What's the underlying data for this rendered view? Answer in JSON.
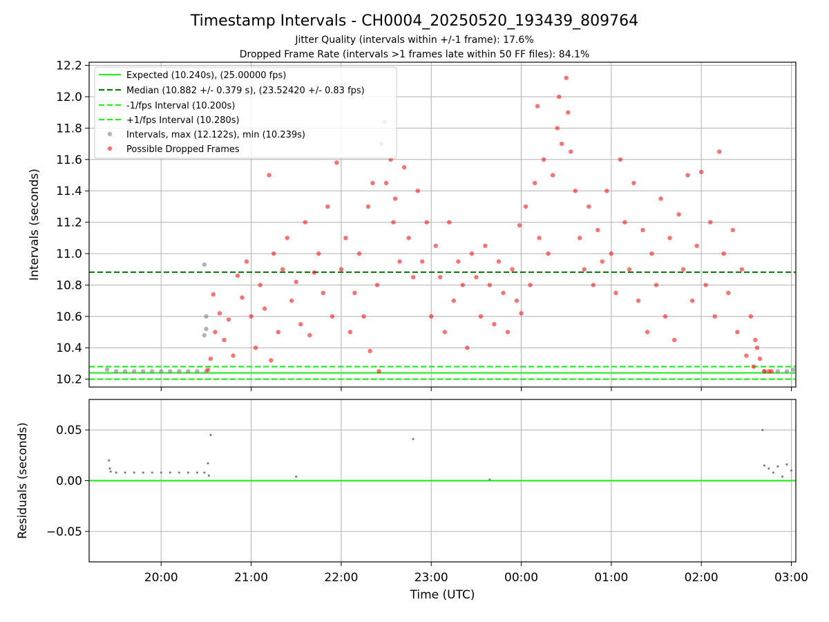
{
  "header": {
    "title": "Timestamp Intervals - CH0004_20250520_193439_809764",
    "subtitle1": "Jitter Quality (intervals within +/-1 frame): 17.6%",
    "subtitle2": "Dropped Frame Rate (intervals >1 frames late within 50 FF files): 84.1%"
  },
  "colors": {
    "expected": "#22ee22",
    "median": "#007f00",
    "bounds": "#22ee22",
    "intervals": "#808080",
    "dropped": "#ff0000"
  },
  "chart_data": [
    {
      "type": "scatter",
      "title": "",
      "xlabel": "",
      "ylabel": "Intervals (seconds)",
      "x_unit": "hours since 00:00 UTC (negative = previous day)",
      "xlim": [
        -4.8,
        3.05
      ],
      "ylim": [
        10.15,
        12.22
      ],
      "x_ticks": [
        -4,
        -3,
        -2,
        -1,
        0,
        1,
        2,
        3
      ],
      "x_tick_labels": [
        "20:00",
        "21:00",
        "22:00",
        "23:00",
        "00:00",
        "01:00",
        "02:00",
        "03:00"
      ],
      "y_ticks": [
        10.2,
        10.4,
        10.6,
        10.8,
        11.0,
        11.2,
        11.4,
        11.6,
        11.8,
        12.0,
        12.2
      ],
      "y_tick_labels": [
        "10.2",
        "10.4",
        "10.6",
        "10.8",
        "11.0",
        "11.2",
        "11.4",
        "11.6",
        "11.8",
        "12.0",
        "12.2"
      ],
      "grid": true,
      "legend_position": "top-left",
      "reference_lines": [
        {
          "name": "Expected (10.240s), (25.00000 fps)",
          "y": 10.24,
          "style": "solid"
        },
        {
          "name": "Median (10.882 +/- 0.379 s), (23.52420 +/- 0.83 fps)",
          "y": 10.882,
          "style": "dashed"
        },
        {
          "name": "-1/fps Interval (10.200s)",
          "y": 10.2,
          "style": "dashed"
        },
        {
          "name": "+1/fps Interval (10.280s)",
          "y": 10.28,
          "style": "dashed"
        }
      ],
      "series": [
        {
          "name": "Intervals, max (12.122s), min (10.239s)",
          "points": [
            [
              -4.6,
              10.26
            ],
            [
              -4.5,
              10.25
            ],
            [
              -4.4,
              10.25
            ],
            [
              -4.3,
              10.25
            ],
            [
              -4.2,
              10.25
            ],
            [
              -4.1,
              10.25
            ],
            [
              -4.0,
              10.25
            ],
            [
              -3.9,
              10.25
            ],
            [
              -3.8,
              10.25
            ],
            [
              -3.7,
              10.25
            ],
            [
              -3.6,
              10.25
            ],
            [
              -3.5,
              10.25
            ],
            [
              -3.52,
              10.48
            ],
            [
              -3.5,
              10.52
            ],
            [
              -3.5,
              10.6
            ],
            [
              -3.52,
              10.93
            ],
            [
              2.7,
              10.25
            ],
            [
              2.85,
              10.25
            ],
            [
              2.95,
              10.25
            ],
            [
              3.02,
              10.26
            ]
          ]
        },
        {
          "name": "Possible Dropped Frames",
          "points": [
            [
              -3.48,
              10.26
            ],
            [
              -3.45,
              10.33
            ],
            [
              -3.42,
              10.74
            ],
            [
              -3.4,
              10.5
            ],
            [
              -3.35,
              10.62
            ],
            [
              -3.3,
              10.45
            ],
            [
              -3.25,
              10.58
            ],
            [
              -3.2,
              10.35
            ],
            [
              -3.15,
              10.86
            ],
            [
              -3.1,
              10.72
            ],
            [
              -3.05,
              10.95
            ],
            [
              -3.0,
              10.6
            ],
            [
              -2.95,
              10.4
            ],
            [
              -2.9,
              10.8
            ],
            [
              -2.85,
              10.65
            ],
            [
              -2.8,
              11.5
            ],
            [
              -2.78,
              10.32
            ],
            [
              -2.75,
              11.0
            ],
            [
              -2.7,
              10.5
            ],
            [
              -2.65,
              10.9
            ],
            [
              -2.6,
              11.1
            ],
            [
              -2.55,
              10.7
            ],
            [
              -2.5,
              10.82
            ],
            [
              -2.45,
              10.55
            ],
            [
              -2.4,
              11.2
            ],
            [
              -2.35,
              10.48
            ],
            [
              -2.3,
              10.88
            ],
            [
              -2.25,
              11.0
            ],
            [
              -2.2,
              10.75
            ],
            [
              -2.15,
              11.3
            ],
            [
              -2.1,
              10.6
            ],
            [
              -2.05,
              11.58
            ],
            [
              -2.0,
              10.9
            ],
            [
              -1.95,
              11.1
            ],
            [
              -1.9,
              10.5
            ],
            [
              -1.85,
              10.75
            ],
            [
              -1.8,
              11.0
            ],
            [
              -1.75,
              10.6
            ],
            [
              -1.7,
              11.3
            ],
            [
              -1.68,
              10.38
            ],
            [
              -1.65,
              11.45
            ],
            [
              -1.6,
              10.8
            ],
            [
              -1.58,
              10.25
            ],
            [
              -1.55,
              11.7
            ],
            [
              -1.52,
              11.84
            ],
            [
              -1.5,
              11.45
            ],
            [
              -1.45,
              11.6
            ],
            [
              -1.42,
              11.2
            ],
            [
              -1.4,
              11.35
            ],
            [
              -1.35,
              10.95
            ],
            [
              -1.3,
              11.55
            ],
            [
              -1.25,
              11.1
            ],
            [
              -1.2,
              10.85
            ],
            [
              -1.15,
              11.4
            ],
            [
              -1.1,
              10.95
            ],
            [
              -1.05,
              11.2
            ],
            [
              -1.0,
              10.6
            ],
            [
              -0.95,
              11.05
            ],
            [
              -0.9,
              10.85
            ],
            [
              -0.85,
              10.5
            ],
            [
              -0.8,
              11.2
            ],
            [
              -0.75,
              10.7
            ],
            [
              -0.7,
              10.95
            ],
            [
              -0.65,
              10.8
            ],
            [
              -0.6,
              10.4
            ],
            [
              -0.55,
              11.0
            ],
            [
              -0.5,
              10.85
            ],
            [
              -0.45,
              10.6
            ],
            [
              -0.4,
              11.05
            ],
            [
              -0.35,
              10.8
            ],
            [
              -0.3,
              10.55
            ],
            [
              -0.25,
              10.95
            ],
            [
              -0.2,
              10.75
            ],
            [
              -0.15,
              10.5
            ],
            [
              -0.1,
              10.9
            ],
            [
              -0.05,
              10.7
            ],
            [
              0.0,
              10.62
            ],
            [
              -0.02,
              11.18
            ],
            [
              0.05,
              11.3
            ],
            [
              0.1,
              10.8
            ],
            [
              0.15,
              11.45
            ],
            [
              0.18,
              11.94
            ],
            [
              0.2,
              11.1
            ],
            [
              0.25,
              11.6
            ],
            [
              0.3,
              11.0
            ],
            [
              0.35,
              11.5
            ],
            [
              0.4,
              11.8
            ],
            [
              0.42,
              12.0
            ],
            [
              0.45,
              11.7
            ],
            [
              0.5,
              12.12
            ],
            [
              0.52,
              11.9
            ],
            [
              0.55,
              11.65
            ],
            [
              0.6,
              11.4
            ],
            [
              0.65,
              11.1
            ],
            [
              0.7,
              10.9
            ],
            [
              0.75,
              11.3
            ],
            [
              0.8,
              10.8
            ],
            [
              0.85,
              11.15
            ],
            [
              0.9,
              10.95
            ],
            [
              0.95,
              11.4
            ],
            [
              1.0,
              11.0
            ],
            [
              1.05,
              10.75
            ],
            [
              1.1,
              11.6
            ],
            [
              1.15,
              11.2
            ],
            [
              1.2,
              10.9
            ],
            [
              1.25,
              11.45
            ],
            [
              1.3,
              10.7
            ],
            [
              1.35,
              11.15
            ],
            [
              1.4,
              10.5
            ],
            [
              1.45,
              11.0
            ],
            [
              1.5,
              10.8
            ],
            [
              1.55,
              11.35
            ],
            [
              1.6,
              10.6
            ],
            [
              1.65,
              11.1
            ],
            [
              1.7,
              10.45
            ],
            [
              1.75,
              11.25
            ],
            [
              1.8,
              10.9
            ],
            [
              1.85,
              11.5
            ],
            [
              1.9,
              10.7
            ],
            [
              1.95,
              11.05
            ],
            [
              2.0,
              11.52
            ],
            [
              2.05,
              10.8
            ],
            [
              2.1,
              11.2
            ],
            [
              2.15,
              10.6
            ],
            [
              2.2,
              11.65
            ],
            [
              2.25,
              11.0
            ],
            [
              2.3,
              10.75
            ],
            [
              2.35,
              11.15
            ],
            [
              2.4,
              10.5
            ],
            [
              2.45,
              10.9
            ],
            [
              2.5,
              10.35
            ],
            [
              2.55,
              10.6
            ],
            [
              2.58,
              10.28
            ],
            [
              2.6,
              10.45
            ],
            [
              2.62,
              10.4
            ],
            [
              2.65,
              10.33
            ],
            [
              2.7,
              10.25
            ],
            [
              2.75,
              10.25
            ],
            [
              2.78,
              10.25
            ]
          ]
        }
      ]
    },
    {
      "type": "scatter",
      "title": "",
      "xlabel": "Time (UTC)",
      "ylabel": "Residuals (seconds)",
      "xlim": [
        -4.8,
        3.05
      ],
      "ylim": [
        -0.08,
        0.08
      ],
      "x_ticks": [
        -4,
        -3,
        -2,
        -1,
        0,
        1,
        2,
        3
      ],
      "x_tick_labels": [
        "20:00",
        "21:00",
        "22:00",
        "23:00",
        "00:00",
        "01:00",
        "02:00",
        "03:00"
      ],
      "y_ticks": [
        -0.05,
        0.0,
        0.05
      ],
      "y_tick_labels": [
        "−0.05",
        "0.00",
        "0.05"
      ],
      "grid": true,
      "reference_lines": [
        {
          "name": "",
          "y": 0.0,
          "style": "solid"
        }
      ],
      "series": [
        {
          "name": "",
          "points": [
            [
              -4.58,
              0.02
            ],
            [
              -4.57,
              0.012
            ],
            [
              -4.56,
              0.009
            ],
            [
              -4.5,
              0.008
            ],
            [
              -4.4,
              0.008
            ],
            [
              -4.3,
              0.008
            ],
            [
              -4.2,
              0.008
            ],
            [
              -4.1,
              0.008
            ],
            [
              -4.0,
              0.008
            ],
            [
              -3.9,
              0.008
            ],
            [
              -3.8,
              0.008
            ],
            [
              -3.7,
              0.008
            ],
            [
              -3.6,
              0.008
            ],
            [
              -3.52,
              0.008
            ],
            [
              -3.48,
              0.017
            ],
            [
              -3.47,
              0.005
            ],
            [
              -3.45,
              0.045
            ],
            [
              -2.5,
              0.004
            ],
            [
              -1.2,
              0.041
            ],
            [
              -0.35,
              0.001
            ],
            [
              2.68,
              0.05
            ],
            [
              2.7,
              0.015
            ],
            [
              2.75,
              0.012
            ],
            [
              2.8,
              0.008
            ],
            [
              2.85,
              0.014
            ],
            [
              2.9,
              0.004
            ],
            [
              2.95,
              0.016
            ],
            [
              3.0,
              0.01
            ]
          ]
        }
      ]
    }
  ]
}
